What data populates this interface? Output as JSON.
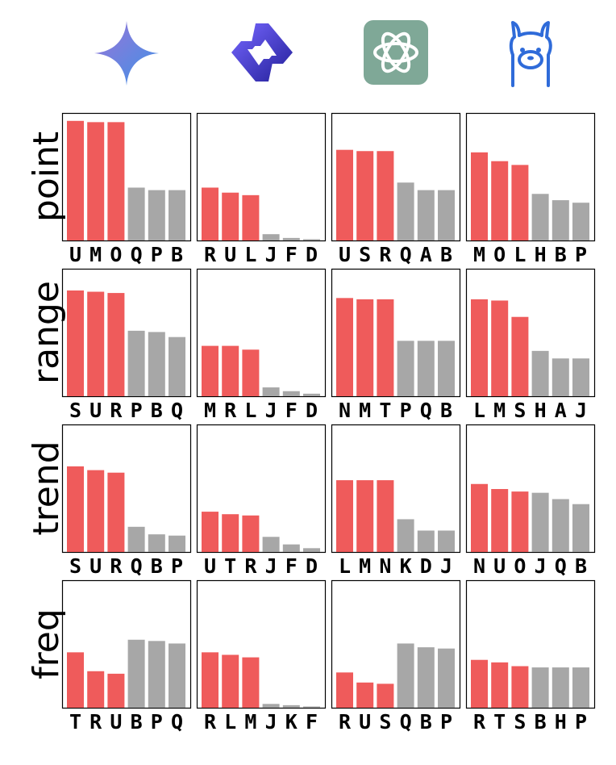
{
  "header": {
    "icons": [
      {
        "name": "gemini-sparkle-icon",
        "colors": [
          "#7b6fd6",
          "#4a90e2"
        ]
      },
      {
        "name": "qwen-hexagon-icon",
        "colors": [
          "#5b4fe0",
          "#3b35b8"
        ]
      },
      {
        "name": "openai-knot-icon",
        "colors": [
          "#7fa897",
          "#ffffff"
        ]
      },
      {
        "name": "llama-head-icon",
        "colors": [
          "#2f6bd9"
        ]
      }
    ]
  },
  "colors": {
    "highlight": "#ef5b5b",
    "other": "#a7a7a7"
  },
  "chart_data": {
    "type": "bar",
    "rows": [
      "point",
      "range",
      "trend",
      "freq"
    ],
    "ylim": [
      0,
      1
    ],
    "grid": false,
    "panels": [
      [
        {
          "categories": [
            "U",
            "M",
            "O",
            "Q",
            "P",
            "B"
          ],
          "values": [
            0.95,
            0.94,
            0.94,
            0.42,
            0.4,
            0.4
          ],
          "highlight": 3
        },
        {
          "categories": [
            "R",
            "U",
            "L",
            "J",
            "F",
            "D"
          ],
          "values": [
            0.42,
            0.38,
            0.36,
            0.05,
            0.02,
            0.01
          ],
          "highlight": 3
        },
        {
          "categories": [
            "U",
            "S",
            "R",
            "Q",
            "A",
            "B"
          ],
          "values": [
            0.72,
            0.71,
            0.71,
            0.46,
            0.4,
            0.4
          ],
          "highlight": 3
        },
        {
          "categories": [
            "M",
            "O",
            "L",
            "H",
            "B",
            "P"
          ],
          "values": [
            0.7,
            0.63,
            0.6,
            0.37,
            0.32,
            0.3
          ],
          "highlight": 3
        }
      ],
      [
        {
          "categories": [
            "S",
            "U",
            "R",
            "P",
            "B",
            "Q"
          ],
          "values": [
            0.84,
            0.83,
            0.82,
            0.52,
            0.51,
            0.47
          ],
          "highlight": 3
        },
        {
          "categories": [
            "M",
            "R",
            "L",
            "J",
            "F",
            "D"
          ],
          "values": [
            0.4,
            0.4,
            0.37,
            0.07,
            0.04,
            0.02
          ],
          "highlight": 3
        },
        {
          "categories": [
            "N",
            "M",
            "T",
            "P",
            "Q",
            "B"
          ],
          "values": [
            0.78,
            0.77,
            0.77,
            0.44,
            0.44,
            0.44
          ],
          "highlight": 3
        },
        {
          "categories": [
            "L",
            "M",
            "S",
            "H",
            "A",
            "J"
          ],
          "values": [
            0.77,
            0.76,
            0.63,
            0.36,
            0.3,
            0.3
          ],
          "highlight": 3
        }
      ],
      [
        {
          "categories": [
            "S",
            "U",
            "R",
            "Q",
            "B",
            "P"
          ],
          "values": [
            0.68,
            0.65,
            0.63,
            0.2,
            0.14,
            0.13
          ],
          "highlight": 3
        },
        {
          "categories": [
            "U",
            "T",
            "R",
            "J",
            "F",
            "D"
          ],
          "values": [
            0.32,
            0.3,
            0.29,
            0.12,
            0.06,
            0.03
          ],
          "highlight": 3
        },
        {
          "categories": [
            "L",
            "M",
            "N",
            "K",
            "D",
            "J"
          ],
          "values": [
            0.57,
            0.57,
            0.57,
            0.26,
            0.17,
            0.17
          ],
          "highlight": 3
        },
        {
          "categories": [
            "N",
            "U",
            "O",
            "J",
            "Q",
            "B"
          ],
          "values": [
            0.54,
            0.5,
            0.48,
            0.47,
            0.42,
            0.38
          ],
          "highlight": 3
        }
      ],
      [
        {
          "categories": [
            "T",
            "R",
            "U",
            "B",
            "P",
            "Q"
          ],
          "values": [
            0.44,
            0.29,
            0.27,
            0.54,
            0.53,
            0.51
          ],
          "highlight": 3
        },
        {
          "categories": [
            "R",
            "L",
            "M",
            "J",
            "K",
            "F"
          ],
          "values": [
            0.44,
            0.42,
            0.4,
            0.03,
            0.02,
            0.01
          ],
          "highlight": 3
        },
        {
          "categories": [
            "R",
            "U",
            "S",
            "Q",
            "B",
            "P"
          ],
          "values": [
            0.28,
            0.2,
            0.19,
            0.51,
            0.48,
            0.47
          ],
          "highlight": 3
        },
        {
          "categories": [
            "R",
            "T",
            "S",
            "B",
            "H",
            "P"
          ],
          "values": [
            0.38,
            0.36,
            0.33,
            0.32,
            0.32,
            0.32
          ],
          "highlight": 3
        }
      ]
    ]
  }
}
